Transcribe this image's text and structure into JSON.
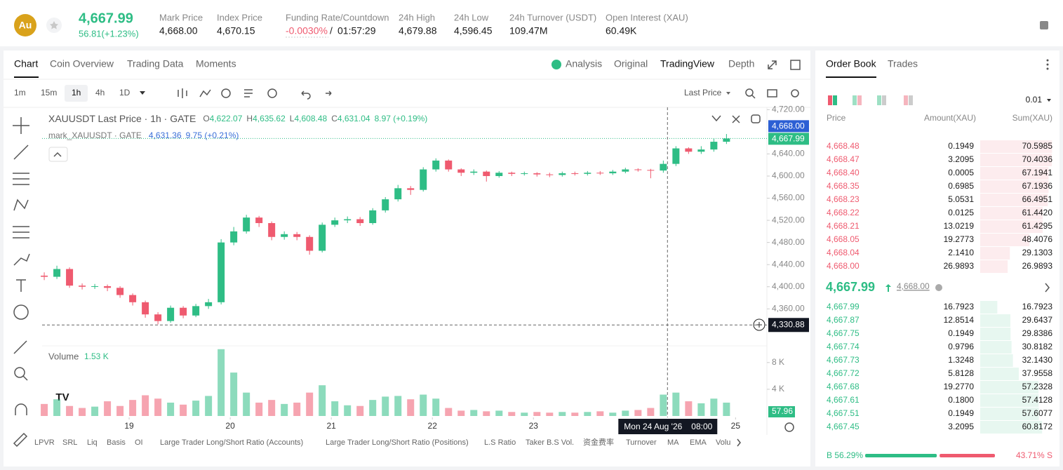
{
  "header": {
    "logo": "Au",
    "price": "4,667.99",
    "change": "56.81(+1.23%)",
    "stats": [
      {
        "label": "Mark Price",
        "value": "4,668.00"
      },
      {
        "label": "Index Price",
        "value": "4,670.15"
      },
      {
        "label": "Funding Rate/Countdown",
        "value": "-0.0030%",
        "countdown": "01:57:29"
      },
      {
        "label": "24h High",
        "value": "4,679.88"
      },
      {
        "label": "24h Low",
        "value": "4,596.45"
      },
      {
        "label": "24h Turnover (USDT)",
        "value": "109.47M"
      },
      {
        "label": "Open Interest (XAU)",
        "value": "60.49K"
      }
    ]
  },
  "chart_tabs": [
    "Chart",
    "Coin Overview",
    "Trading Data",
    "Moments"
  ],
  "view_tabs": [
    "Analysis",
    "Original",
    "TradingView",
    "Depth"
  ],
  "intervals": [
    "1m",
    "15m",
    "1h",
    "4h",
    "1D"
  ],
  "price_type": "Last Price",
  "legend": {
    "symbol": "XAUUSDT Last Price · 1h · GATE",
    "ohlc": [
      {
        "key": "O",
        "value": "4,622.07"
      },
      {
        "key": "H",
        "value": "4,635.62"
      },
      {
        "key": "L",
        "value": "4,608.48"
      },
      {
        "key": "C",
        "value": "4,631.04"
      }
    ],
    "change": "8.97 (+0.19%)",
    "mark": "mark_XAUUSDT · GATE",
    "mark_value": "4,631.36",
    "mark_change": "9.75 (+0.21%)",
    "volume": "Volume",
    "volume_value": "1.53 K"
  },
  "chart_data": {
    "type": "candlestick",
    "up_color": "#2ebd85",
    "down_color": "#ef5a6f",
    "open": [
      4420,
      4418,
      4432,
      4402,
      4400,
      4401,
      4398,
      4385,
      4372,
      4350,
      4338,
      4362,
      4348,
      4365,
      4372,
      4480,
      4500,
      4525,
      4515,
      4490,
      4495,
      4490,
      4465,
      4512,
      4520,
      4522,
      4515,
      4538,
      4558,
      4578,
      4575,
      4612,
      4628,
      4612,
      4606,
      4608,
      4600,
      4606,
      4604,
      4605,
      4603,
      4602,
      4605,
      4604,
      4606,
      4605,
      4608,
      4612,
      4611,
      4610,
      4622,
      4650,
      4644,
      4648,
      4662
    ],
    "high": [
      4426,
      4438,
      4435,
      4406,
      4405,
      4404,
      4401,
      4388,
      4375,
      4354,
      4366,
      4365,
      4369,
      4378,
      4486,
      4508,
      4530,
      4528,
      4518,
      4500,
      4499,
      4493,
      4516,
      4525,
      4527,
      4526,
      4542,
      4562,
      4584,
      4582,
      4616,
      4632,
      4630,
      4614,
      4612,
      4610,
      4609,
      4608,
      4608,
      4607,
      4606,
      4608,
      4608,
      4609,
      4609,
      4611,
      4615,
      4614,
      4613,
      4628,
      4654,
      4652,
      4654,
      4668,
      4676
    ],
    "low": [
      4412,
      4414,
      4398,
      4395,
      4396,
      4392,
      4380,
      4366,
      4344,
      4332,
      4335,
      4343,
      4345,
      4360,
      4368,
      4475,
      4496,
      4508,
      4484,
      4485,
      4484,
      4458,
      4462,
      4508,
      4515,
      4510,
      4512,
      4534,
      4554,
      4566,
      4572,
      4608,
      4608,
      4600,
      4602,
      4590,
      4597,
      4600,
      4601,
      4599,
      4598,
      4599,
      4601,
      4601,
      4602,
      4602,
      4605,
      4608,
      4596,
      4606,
      4618,
      4640,
      4640,
      4644,
      4658
    ],
    "close": [
      4418,
      4432,
      4402,
      4400,
      4401,
      4398,
      4385,
      4372,
      4350,
      4338,
      4362,
      4348,
      4365,
      4372,
      4480,
      4500,
      4525,
      4515,
      4490,
      4495,
      4490,
      4465,
      4512,
      4520,
      4522,
      4515,
      4538,
      4558,
      4578,
      4575,
      4612,
      4628,
      4612,
      4606,
      4608,
      4600,
      4606,
      4604,
      4605,
      4603,
      4602,
      4605,
      4604,
      4606,
      4605,
      4608,
      4612,
      4611,
      4610,
      4622,
      4650,
      4644,
      4648,
      4662,
      4668
    ],
    "volume": [
      1800,
      2500,
      1500,
      1200,
      1400,
      2200,
      1500,
      2400,
      3100,
      2600,
      2000,
      1700,
      2300,
      3000,
      10000,
      6500,
      3500,
      2000,
      2400,
      1800,
      2000,
      3500,
      4600,
      2200,
      1600,
      1500,
      2400,
      2900,
      3000,
      2500,
      3200,
      2600,
      1200,
      800,
      900,
      700,
      800,
      600,
      500,
      600,
      500,
      600,
      500,
      600,
      700,
      500,
      800,
      900,
      1200,
      3200,
      3500,
      2200,
      1900,
      2600,
      2000
    ],
    "xlim": [
      -0.17,
      57.2
    ],
    "ylim": [
      4297,
      4728
    ],
    "volume_ylim": [
      0,
      10500
    ],
    "yticks": [
      {
        "value": 4720,
        "label": "4,720.00"
      },
      {
        "value": 4640,
        "label": "4,640.00"
      },
      {
        "value": 4600,
        "label": "4,600.00"
      },
      {
        "value": 4560,
        "label": "4,560.00"
      },
      {
        "value": 4520,
        "label": "4,520.00"
      },
      {
        "value": 4480,
        "label": "4,480.00"
      },
      {
        "value": 4440,
        "label": "4,440.00"
      },
      {
        "value": 4400,
        "label": "4,400.00"
      },
      {
        "value": 4360,
        "label": "4,360.00"
      }
    ],
    "volume_ticks": [
      {
        "value": 8000,
        "label": "8 K"
      },
      {
        "value": 4000,
        "label": "4 K"
      }
    ],
    "xticks": [
      {
        "value": 6.72,
        "label": "19"
      },
      {
        "value": 14.72,
        "label": "20"
      },
      {
        "value": 22.72,
        "label": "21"
      },
      {
        "value": 30.72,
        "label": "22"
      },
      {
        "value": 38.72,
        "label": "23"
      },
      {
        "value": 54.72,
        "label": "25"
      }
    ],
    "last_price": {
      "value": 4667.99,
      "label": "4,667.99"
    },
    "mark_price_label": "4,668.00",
    "volume_last": "57.96",
    "crosshair": {
      "x": 49.33,
      "time": "Mon 24 Aug '26",
      "hour": "08:00",
      "price": {
        "value": 4330.88,
        "label": "4,330.88"
      }
    }
  },
  "indicators": [
    "LPVR",
    "SRL",
    "Liq",
    "Basis",
    "OI",
    "Large Trader Long/Short Ratio (Accounts)",
    "Large Trader Long/Short Ratio (Positions)",
    "L.S Ratio",
    "Taker B.S Vol.",
    "资金费率",
    "Turnover",
    "MA",
    "EMA",
    "Volu"
  ],
  "order_book": {
    "tabs": [
      "Order Book",
      "Trades"
    ],
    "precision": "0.01",
    "headers": [
      "Price",
      "Amount(XAU)",
      "Sum(XAU)"
    ],
    "asks": [
      [
        "4,668.48",
        "0.1949",
        "70.5985"
      ],
      [
        "4,668.47",
        "3.2095",
        "70.4036"
      ],
      [
        "4,668.40",
        "0.0005",
        "67.1941"
      ],
      [
        "4,668.35",
        "0.6985",
        "67.1936"
      ],
      [
        "4,668.23",
        "5.0531",
        "66.4951"
      ],
      [
        "4,668.22",
        "0.0125",
        "61.4420"
      ],
      [
        "4,668.21",
        "13.0219",
        "61.4295"
      ],
      [
        "4,668.05",
        "19.2773",
        "48.4076"
      ],
      [
        "4,668.04",
        "2.1410",
        "29.1303"
      ],
      [
        "4,668.00",
        "26.9893",
        "26.9893"
      ]
    ],
    "bids": [
      [
        "4,667.99",
        "16.7923",
        "16.7923"
      ],
      [
        "4,667.87",
        "12.8514",
        "29.6437"
      ],
      [
        "4,667.75",
        "0.1949",
        "29.8386"
      ],
      [
        "4,667.74",
        "0.9796",
        "30.8182"
      ],
      [
        "4,667.73",
        "1.3248",
        "32.1430"
      ],
      [
        "4,667.72",
        "5.8128",
        "37.9558"
      ],
      [
        "4,667.68",
        "19.2770",
        "57.2328"
      ],
      [
        "4,667.61",
        "0.1800",
        "57.4128"
      ],
      [
        "4,667.51",
        "0.1949",
        "57.6077"
      ],
      [
        "4,667.45",
        "3.2095",
        "60.8172"
      ]
    ],
    "last": "4,667.99",
    "mark": "4,668.00",
    "buy": 56.29,
    "buy_label": "B 56.29%",
    "sell": 43.71,
    "sell_label": "43.71% S"
  }
}
